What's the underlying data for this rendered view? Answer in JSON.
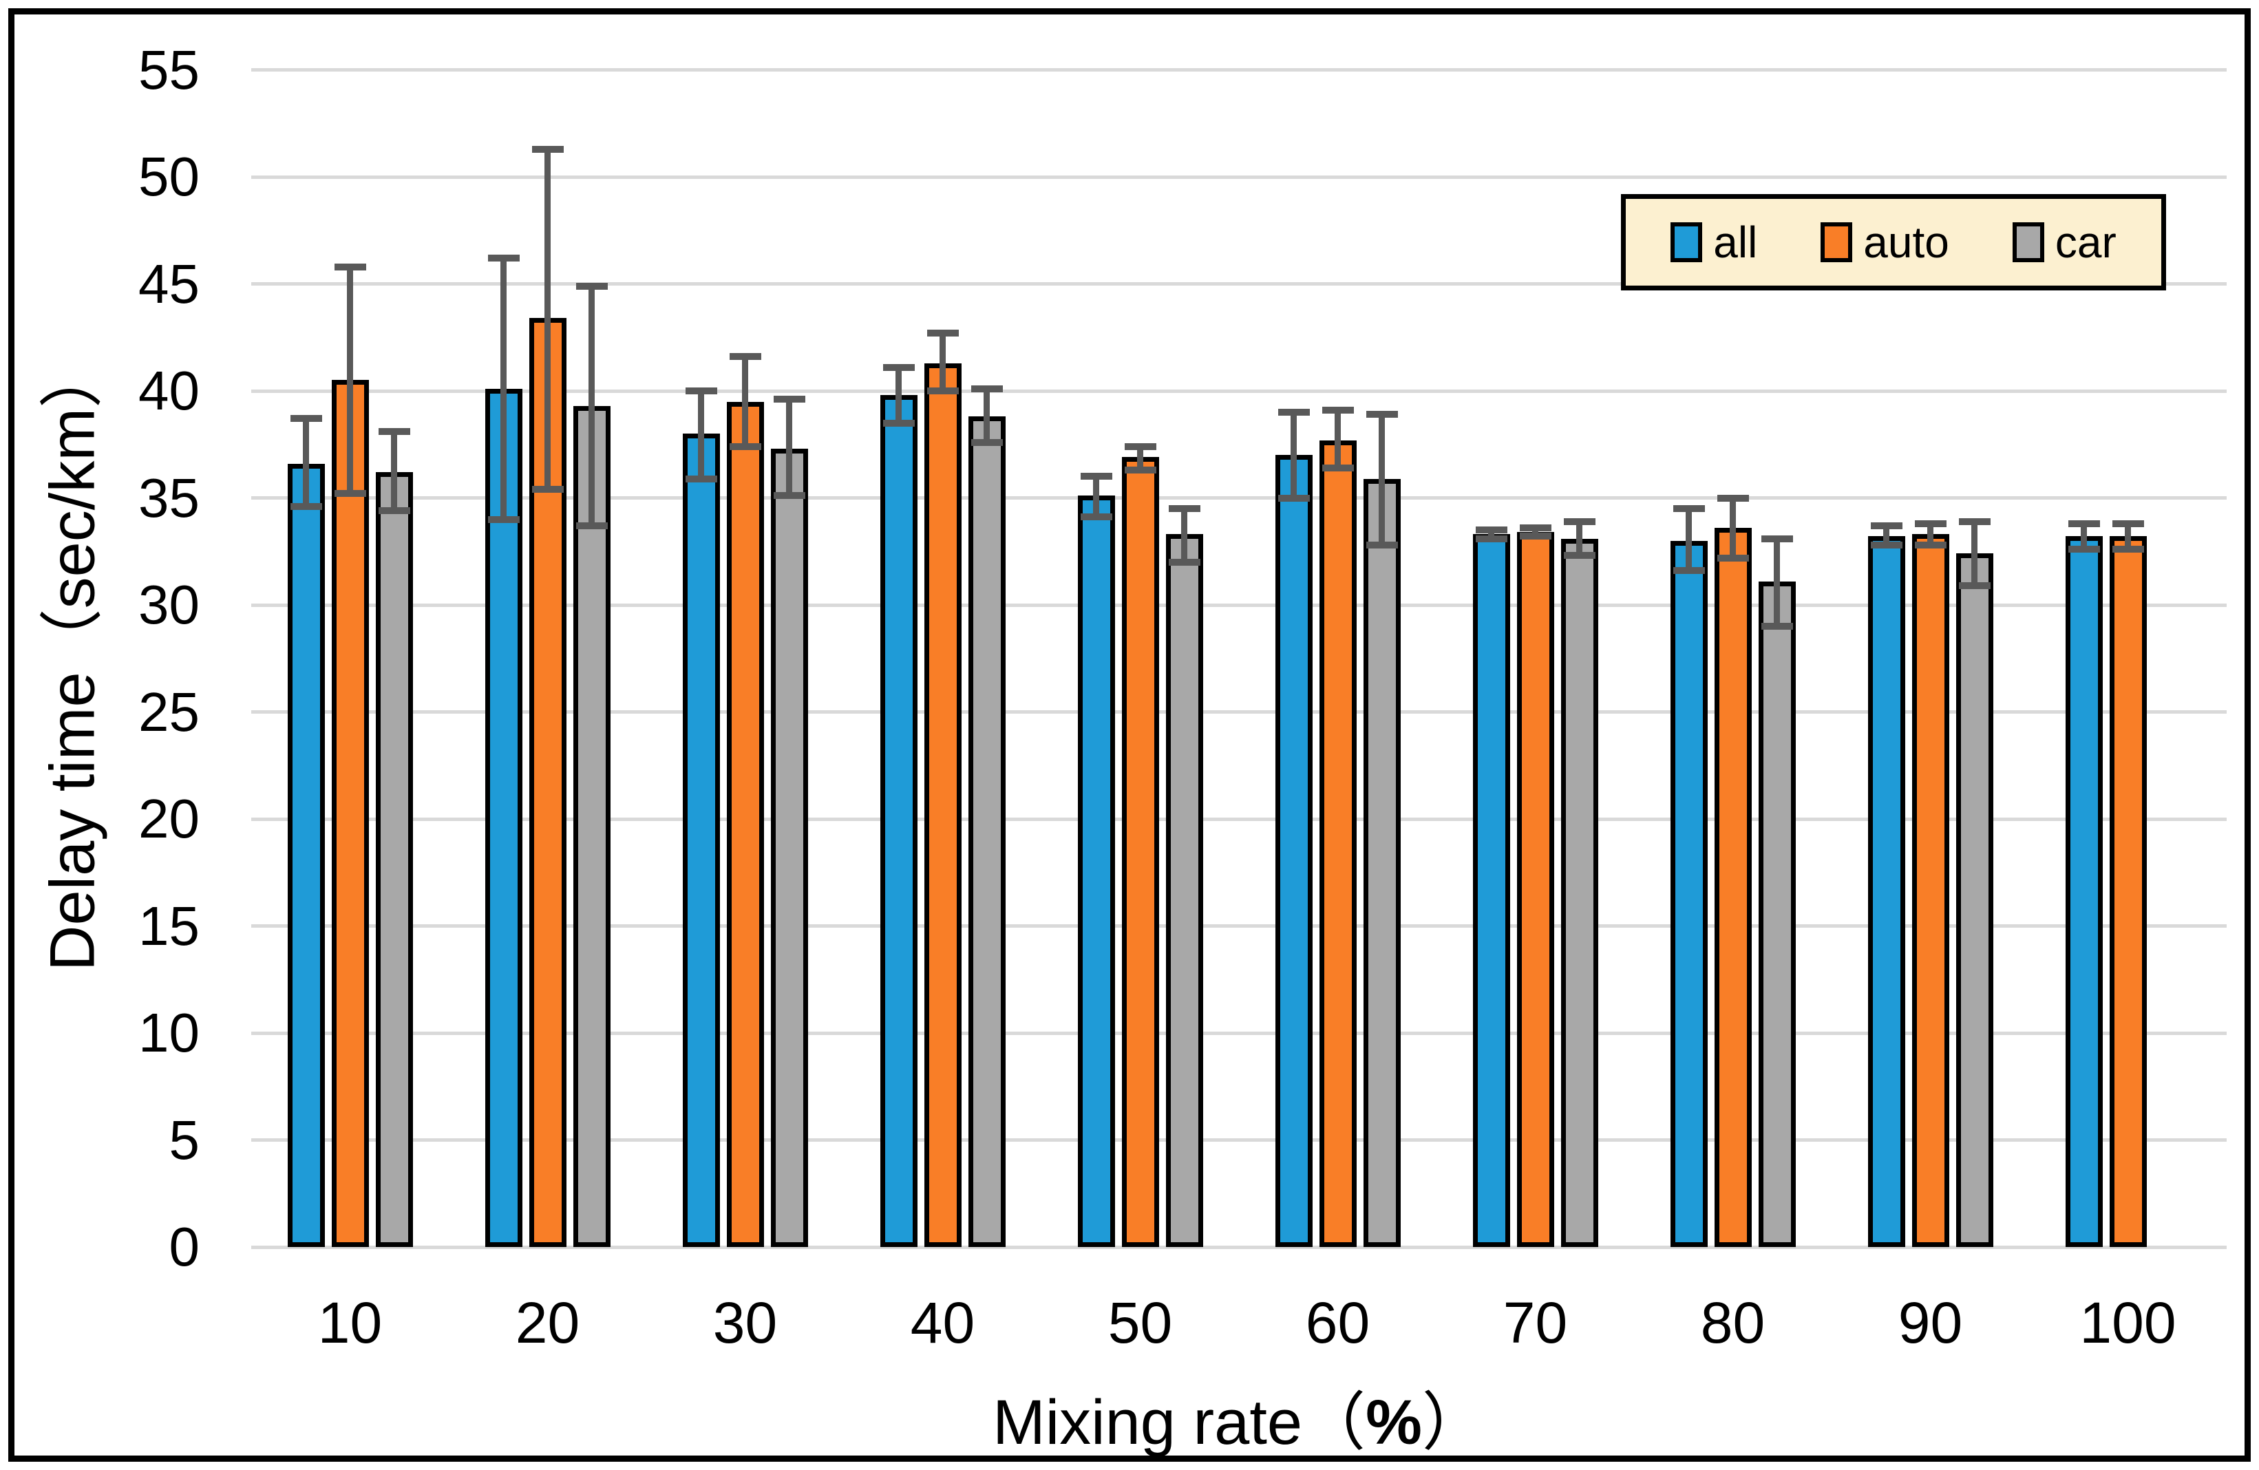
{
  "figure": {
    "background": "#FFFFFF",
    "border_color": "#000000"
  },
  "legend": {
    "background": "#FCF0D0",
    "border_color": "#000000",
    "position": "top-right"
  },
  "chart_data": {
    "type": "bar",
    "title": "",
    "ylabel": "Delay time（sec/km）",
    "xlabel_text": "Mixing rate",
    "xlabel_open_paren": "（",
    "xlabel_percent": "%",
    "xlabel_close_paren": "）",
    "x_categories": [
      "10",
      "20",
      "30",
      "40",
      "50",
      "60",
      "70",
      "80",
      "90",
      "100"
    ],
    "y_ticks": [
      0,
      5,
      10,
      15,
      20,
      25,
      30,
      35,
      40,
      45,
      50,
      55
    ],
    "ylim": [
      0,
      55
    ],
    "grid": "horizontal gridlines on",
    "gridline_color": "#D9D9D9",
    "error_bar_color": "#595959",
    "bar_outline_color": "#000000",
    "legend_position": "top-right inside plot",
    "series": [
      {
        "name": "all",
        "color": "#1F9BD7",
        "values": [
          36.6,
          40.1,
          38.0,
          39.8,
          35.1,
          37.0,
          33.3,
          33.0,
          33.2,
          33.2
        ],
        "error_plus": [
          2.1,
          6.1,
          2.0,
          1.3,
          0.9,
          2.0,
          0.2,
          1.5,
          0.5,
          0.6
        ],
        "error_minus": [
          2.0,
          6.1,
          2.1,
          1.3,
          1.0,
          2.0,
          0.2,
          1.4,
          0.4,
          0.6
        ]
      },
      {
        "name": "auto",
        "color": "#F97E27",
        "values": [
          40.5,
          43.4,
          39.5,
          41.3,
          36.9,
          37.7,
          33.4,
          33.6,
          33.3,
          33.2
        ],
        "error_plus": [
          5.3,
          7.9,
          2.1,
          1.4,
          0.5,
          1.4,
          0.2,
          1.4,
          0.5,
          0.6
        ],
        "error_minus": [
          5.3,
          8.0,
          2.1,
          1.3,
          0.6,
          1.3,
          0.2,
          1.4,
          0.5,
          0.6
        ]
      },
      {
        "name": "car",
        "color": "#A8A8A8",
        "values": [
          36.2,
          39.3,
          37.3,
          38.8,
          33.3,
          35.9,
          33.1,
          31.1,
          32.4,
          null
        ],
        "error_plus": [
          1.9,
          5.6,
          2.3,
          1.3,
          1.2,
          3.0,
          0.8,
          2.0,
          1.5,
          null
        ],
        "error_minus": [
          1.8,
          5.6,
          2.2,
          1.2,
          1.3,
          3.1,
          0.8,
          2.1,
          1.5,
          null
        ]
      }
    ]
  }
}
